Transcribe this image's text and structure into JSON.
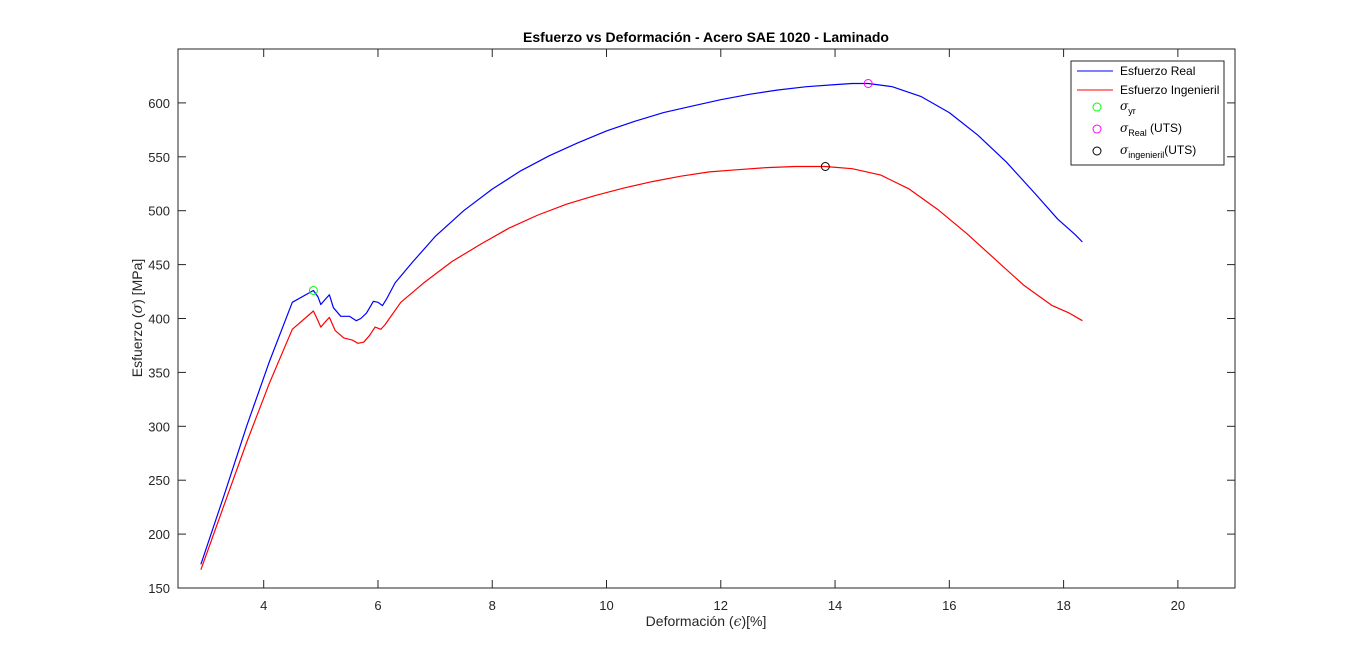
{
  "chart_data": {
    "type": "line",
    "title": "Esfuerzo vs Deformación - Acero SAE 1020 - Laminado",
    "xlabel": {
      "prefix": "Deformación (",
      "symbol": "ϵ",
      "suffix": ")[%]"
    },
    "ylabel": {
      "prefix": "Esfuerzo (",
      "symbol": "σ",
      "suffix": ") [MPa]"
    },
    "xlim": [
      2.5,
      21
    ],
    "ylim": [
      150,
      650
    ],
    "xticks": [
      4,
      6,
      8,
      10,
      12,
      14,
      16,
      18,
      20
    ],
    "yticks": [
      150,
      200,
      250,
      300,
      350,
      400,
      450,
      500,
      550,
      600
    ],
    "grid": false,
    "legend_position": "top-right",
    "series": [
      {
        "name": "Esfuerzo Real",
        "color": "#0000ff",
        "x": [
          2.9,
          3.3,
          3.7,
          4.1,
          4.5,
          4.87,
          4.95,
          5.0,
          5.08,
          5.15,
          5.22,
          5.35,
          5.5,
          5.62,
          5.7,
          5.8,
          5.92,
          6.0,
          6.08,
          6.15,
          6.3,
          6.6,
          7.0,
          7.5,
          8.0,
          8.5,
          9.0,
          9.5,
          10.0,
          10.5,
          11.0,
          11.5,
          12.0,
          12.5,
          13.0,
          13.5,
          14.0,
          14.3,
          14.58,
          15.0,
          15.5,
          16.0,
          16.5,
          17.0,
          17.5,
          17.9,
          18.2,
          18.33
        ],
        "y": [
          172,
          235,
          300,
          360,
          415,
          426,
          420,
          413,
          418,
          422,
          410,
          402,
          402,
          398,
          400,
          405,
          416,
          415,
          412,
          418,
          433,
          452,
          476,
          500,
          520,
          537,
          551,
          563,
          574,
          583,
          591,
          597,
          603,
          608,
          612,
          615,
          617,
          618,
          618,
          615,
          606,
          591,
          570,
          545,
          516,
          492,
          478,
          471
        ]
      },
      {
        "name": "Esfuerzo Ingenieril",
        "color": "#ff0000",
        "x": [
          2.9,
          3.3,
          3.7,
          4.1,
          4.5,
          4.87,
          4.95,
          5.0,
          5.08,
          5.15,
          5.25,
          5.4,
          5.55,
          5.65,
          5.75,
          5.85,
          5.95,
          6.05,
          6.12,
          6.2,
          6.4,
          6.8,
          7.3,
          7.8,
          8.3,
          8.8,
          9.3,
          9.8,
          10.3,
          10.8,
          11.3,
          11.8,
          12.3,
          12.8,
          13.3,
          13.83,
          14.3,
          14.8,
          15.3,
          15.8,
          16.3,
          16.8,
          17.3,
          17.8,
          18.1,
          18.33
        ],
        "y": [
          167,
          226,
          285,
          340,
          390,
          407,
          398,
          392,
          397,
          401,
          389,
          382,
          380,
          377,
          378,
          384,
          392,
          390,
          394,
          400,
          415,
          433,
          453,
          469,
          484,
          496,
          506,
          514,
          521,
          527,
          532,
          536,
          538,
          540,
          541,
          541,
          539,
          533,
          520,
          501,
          479,
          455,
          431,
          412,
          405,
          398
        ]
      }
    ],
    "markers": [
      {
        "label_symbol": "σ",
        "label_sub": "yr",
        "label_suffix": "",
        "x": 4.87,
        "y": 426,
        "color": "#00ff00"
      },
      {
        "label_symbol": "σ",
        "label_sub": "Real",
        "label_suffix": " (UTS)",
        "x": 14.58,
        "y": 618,
        "color": "#ff00ff"
      },
      {
        "label_symbol": "σ",
        "label_sub": "ingenieril",
        "label_suffix": "(UTS)",
        "x": 13.83,
        "y": 541,
        "color": "#000000"
      }
    ]
  }
}
